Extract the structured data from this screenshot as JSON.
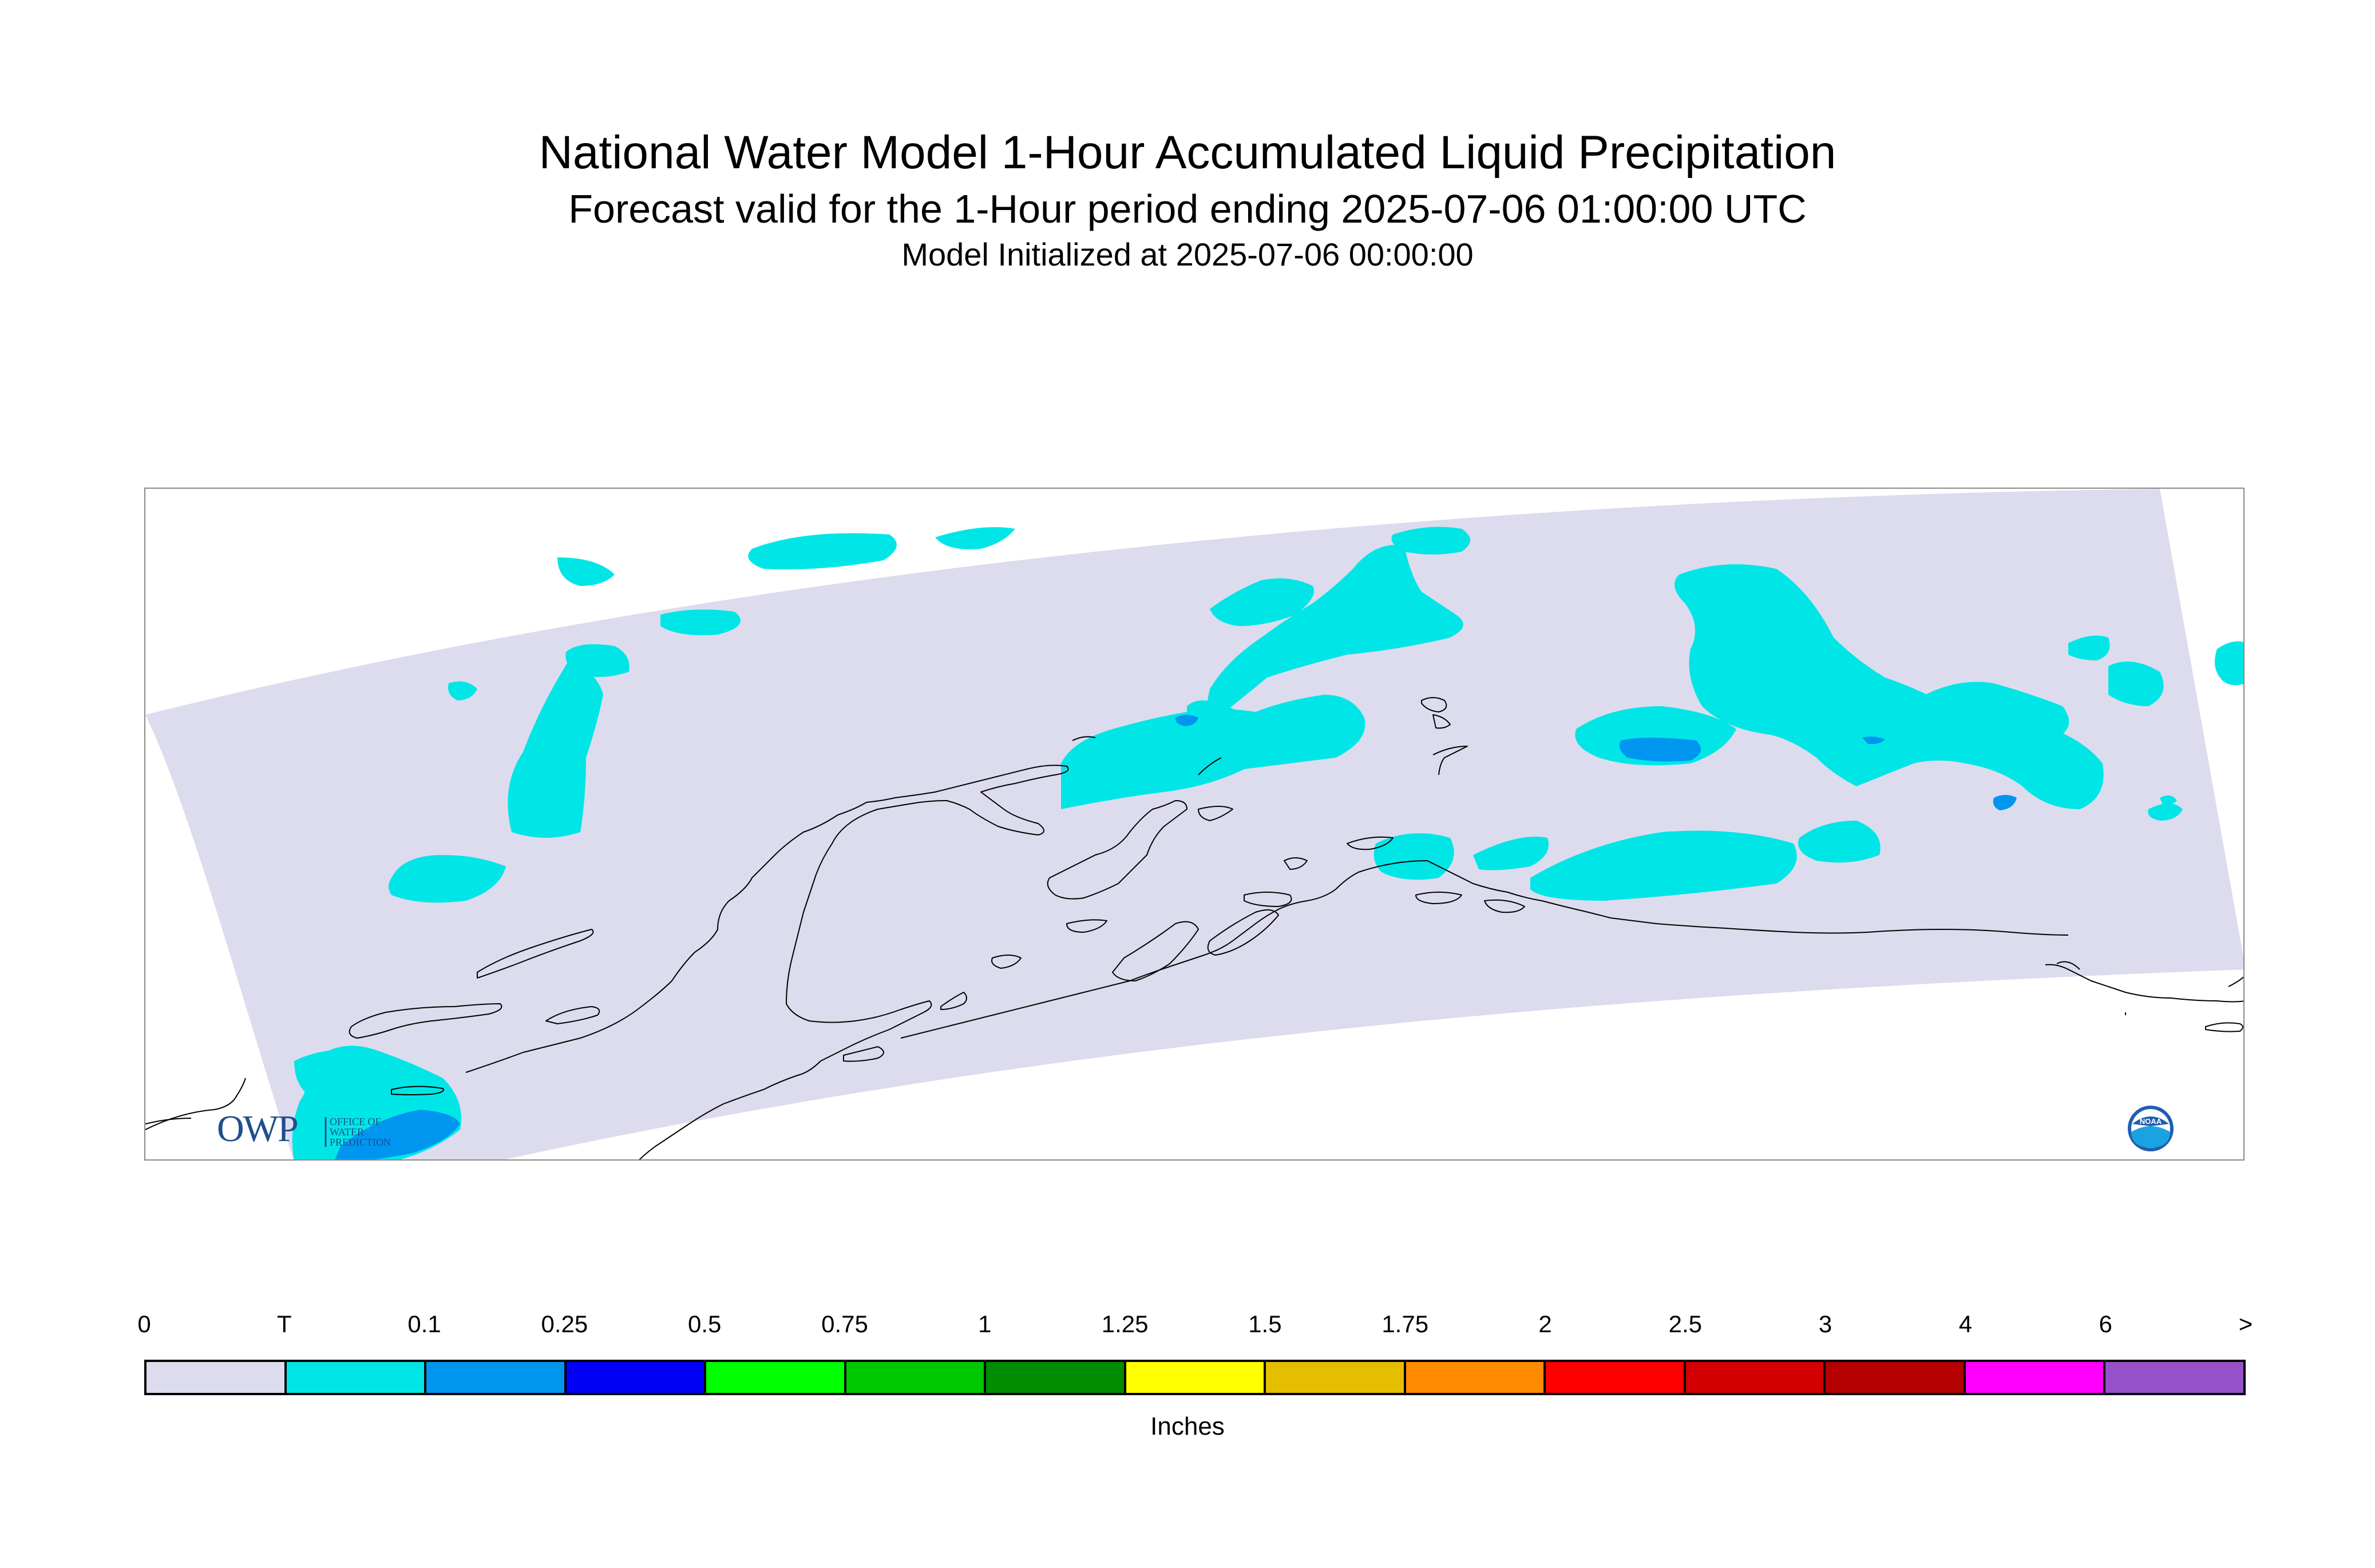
{
  "header": {
    "title": "National Water Model 1-Hour Accumulated Liquid Precipitation",
    "subtitle": "Forecast valid for the 1-Hour period ending 2025-07-06 01:00:00 UTC",
    "init": "Model Initialized at 2025-07-06 00:00:00"
  },
  "map": {
    "region": "Alaska",
    "domain_color": "#dcdcee",
    "coastline_color": "#000000",
    "logos": {
      "owp_mark": "OWP",
      "owp_text": [
        "OFFICE OF",
        "WATER",
        "PREDICTION"
      ],
      "noaa_text": "NOAA"
    }
  },
  "legend": {
    "labels": [
      "0",
      "T",
      "0.1",
      "0.25",
      "0.5",
      "0.75",
      "1",
      "1.25",
      "1.5",
      "1.75",
      "2",
      "2.5",
      "3",
      "4",
      "6",
      ">"
    ],
    "colors": [
      "#dcdcee",
      "#00e6e6",
      "#0096f0",
      "#0000f5",
      "#00ff00",
      "#00c800",
      "#008c00",
      "#ffff00",
      "#e6be00",
      "#ff8c00",
      "#ff0000",
      "#d20000",
      "#b40000",
      "#ff00ff",
      "#9650c8"
    ],
    "units": "Inches"
  }
}
